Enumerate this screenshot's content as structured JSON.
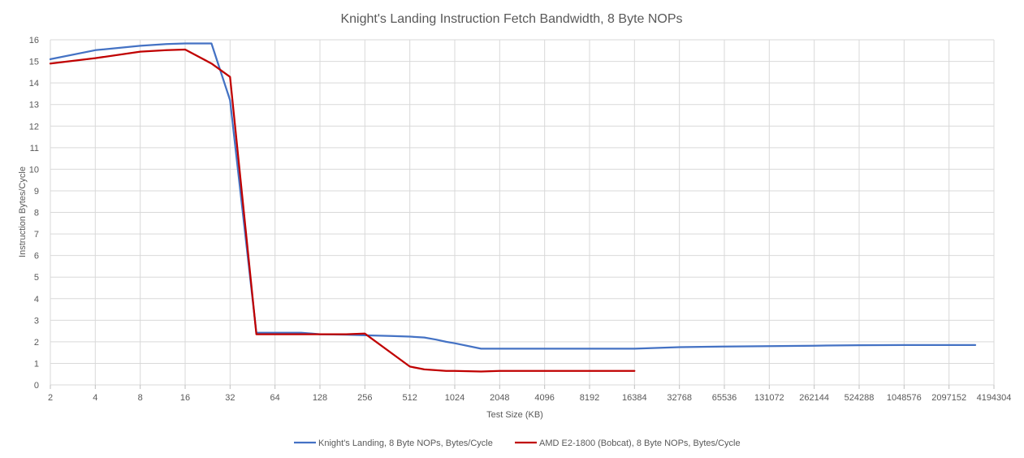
{
  "chart_data": {
    "type": "line",
    "title": "Knight's Landing Instruction Fetch Bandwidth, 8 Byte NOPs",
    "xlabel": "Test Size (KB)",
    "ylabel": "Instruction Bytes/Cycle",
    "x_scale": "log2",
    "x_ticks": [
      "2",
      "4",
      "8",
      "16",
      "32",
      "64",
      "128",
      "256",
      "512",
      "1024",
      "2048",
      "4096",
      "8192",
      "16384",
      "32768",
      "65536",
      "131072",
      "262144",
      "524288",
      "1048576",
      "2097152",
      "4194304"
    ],
    "y_ticks": [
      "0",
      "1",
      "2",
      "3",
      "4",
      "5",
      "6",
      "7",
      "8",
      "9",
      "10",
      "11",
      "12",
      "13",
      "14",
      "15",
      "16"
    ],
    "xlim": [
      2,
      4194304
    ],
    "ylim": [
      0,
      16
    ],
    "grid": true,
    "legend_position": "bottom",
    "series": [
      {
        "name": "Knight's Landing, 8 Byte NOPs, Bytes/Cycle",
        "color": "#4472c4",
        "points": [
          [
            2,
            15.1
          ],
          [
            4,
            15.52
          ],
          [
            8,
            15.72
          ],
          [
            12,
            15.8
          ],
          [
            16,
            15.83
          ],
          [
            24,
            15.83
          ],
          [
            32,
            13.2
          ],
          [
            48,
            2.42
          ],
          [
            64,
            2.42
          ],
          [
            96,
            2.42
          ],
          [
            128,
            2.35
          ],
          [
            192,
            2.33
          ],
          [
            256,
            2.3
          ],
          [
            384,
            2.27
          ],
          [
            512,
            2.24
          ],
          [
            640,
            2.2
          ],
          [
            768,
            2.1
          ],
          [
            896,
            2.0
          ],
          [
            1024,
            1.93
          ],
          [
            1536,
            1.68
          ],
          [
            2048,
            1.68
          ],
          [
            4096,
            1.68
          ],
          [
            8192,
            1.68
          ],
          [
            16384,
            1.68
          ],
          [
            32768,
            1.75
          ],
          [
            65536,
            1.78
          ],
          [
            131072,
            1.8
          ],
          [
            262144,
            1.82
          ],
          [
            524288,
            1.84
          ],
          [
            1048576,
            1.85
          ],
          [
            2097152,
            1.85
          ],
          [
            3145728,
            1.85
          ]
        ]
      },
      {
        "name": "AMD E2-1800 (Bobcat), 8 Byte NOPs, Bytes/Cycle",
        "color": "#c00000",
        "points": [
          [
            2,
            14.9
          ],
          [
            4,
            15.15
          ],
          [
            8,
            15.45
          ],
          [
            12,
            15.52
          ],
          [
            16,
            15.55
          ],
          [
            24,
            14.9
          ],
          [
            32,
            14.28
          ],
          [
            48,
            2.35
          ],
          [
            64,
            2.35
          ],
          [
            96,
            2.35
          ],
          [
            128,
            2.35
          ],
          [
            192,
            2.35
          ],
          [
            256,
            2.38
          ],
          [
            512,
            0.85
          ],
          [
            640,
            0.72
          ],
          [
            768,
            0.68
          ],
          [
            896,
            0.65
          ],
          [
            1024,
            0.65
          ],
          [
            1536,
            0.62
          ],
          [
            2048,
            0.65
          ],
          [
            4096,
            0.65
          ],
          [
            8192,
            0.65
          ],
          [
            16384,
            0.65
          ]
        ]
      }
    ]
  }
}
